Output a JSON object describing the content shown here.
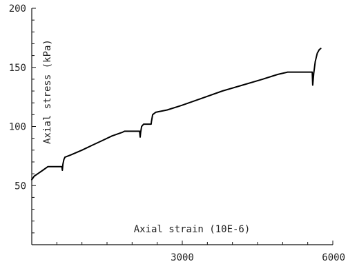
{
  "chart_data": {
    "type": "line",
    "title": "",
    "xlabel": "Axial strain (10E-6)",
    "ylabel": "Axial stress (kPa)",
    "xlim": [
      0,
      6000
    ],
    "ylim": [
      0,
      200
    ],
    "x_ticks": [
      3000,
      6000
    ],
    "y_ticks": [
      50,
      100,
      150,
      200
    ],
    "x_tick_labels": [
      "3000",
      "6000"
    ],
    "y_tick_labels": [
      "50",
      "100",
      "150",
      "200"
    ],
    "grid": false,
    "series": [
      {
        "points": [
          [
            0,
            55
          ],
          [
            50,
            58
          ],
          [
            120,
            60
          ],
          [
            220,
            63
          ],
          [
            320,
            66
          ],
          [
            450,
            66
          ],
          [
            600,
            66
          ],
          [
            610,
            63
          ],
          [
            620,
            68
          ],
          [
            640,
            72
          ],
          [
            660,
            74
          ],
          [
            780,
            76
          ],
          [
            1000,
            80
          ],
          [
            1200,
            84
          ],
          [
            1400,
            88
          ],
          [
            1600,
            92
          ],
          [
            1800,
            95
          ],
          [
            1850,
            96
          ],
          [
            2150,
            96
          ],
          [
            2160,
            91
          ],
          [
            2170,
            95
          ],
          [
            2190,
            100
          ],
          [
            2230,
            102
          ],
          [
            2380,
            102
          ],
          [
            2385,
            104
          ],
          [
            2410,
            110
          ],
          [
            2470,
            112
          ],
          [
            2700,
            114
          ],
          [
            3000,
            118
          ],
          [
            3400,
            124
          ],
          [
            3800,
            130
          ],
          [
            4200,
            135
          ],
          [
            4600,
            140
          ],
          [
            4900,
            144
          ],
          [
            5100,
            146
          ],
          [
            5300,
            146
          ],
          [
            5560,
            146
          ],
          [
            5590,
            146
          ],
          [
            5600,
            135
          ],
          [
            5620,
            145
          ],
          [
            5650,
            155
          ],
          [
            5690,
            162
          ],
          [
            5730,
            165
          ],
          [
            5760,
            166
          ]
        ]
      }
    ]
  }
}
